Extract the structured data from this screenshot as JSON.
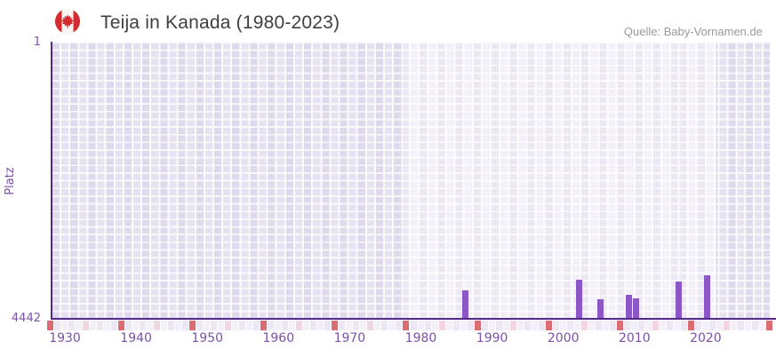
{
  "header": {
    "title": "Teija in Kanada (1980-2023)",
    "source": "Quelle: Baby-Vornamen.de",
    "flag_icon": "canada-flag-icon"
  },
  "chart_data": {
    "type": "bar",
    "title": "Teija in Kanada (1980-2023)",
    "xlabel": "",
    "ylabel": "Platz",
    "y_axis": {
      "top_label": "1",
      "bottom_label": "4442",
      "min": 1,
      "max": 4442,
      "inverted": true
    },
    "x_axis": {
      "start": 1928,
      "end": 2029,
      "tick_years": [
        1930,
        1940,
        1950,
        1960,
        1970,
        1980,
        1990,
        2000,
        2010,
        2020
      ]
    },
    "series": [
      {
        "name": "Platz",
        "points": [
          {
            "year": 1986,
            "rank": 4005
          },
          {
            "year": 2002,
            "rank": 3830
          },
          {
            "year": 2005,
            "rank": 4140
          },
          {
            "year": 2009,
            "rank": 4065
          },
          {
            "year": 2010,
            "rank": 4125
          },
          {
            "year": 2016,
            "rank": 3855
          },
          {
            "year": 2020,
            "rank": 3750
          }
        ]
      }
    ],
    "plot_bands": [
      {
        "from": 1928,
        "to": 1977.5,
        "shade": "dark"
      },
      {
        "from": 1977.5,
        "to": 2021.5,
        "shade": "light"
      },
      {
        "from": 2021.5,
        "to": 2029,
        "shade": "dark"
      }
    ],
    "timeline_markers": {
      "red_years": [
        1928,
        1938,
        1948,
        1958,
        1968,
        1978,
        1988,
        1998,
        2008,
        2018,
        2029
      ],
      "pink_years": [
        1933,
        1943,
        1953,
        1963,
        1973,
        1983,
        1993,
        2003,
        2013,
        2023
      ]
    },
    "legend": "off",
    "grid": "on"
  },
  "colors": {
    "bar": "#8c57c6",
    "axis": "#532a87",
    "tick_label": "#7b51a8",
    "title": "#3f3f3f",
    "source": "#9a9a9a",
    "band_dark_a": "#dfd9ec",
    "band_dark_b": "#e7e2f1",
    "band_light_a": "#ebe7f3",
    "band_light_b": "#f3f0f9",
    "strip_a": "#ece7f3",
    "strip_b": "#f4f0f9",
    "marker_red": "#dd6b74",
    "marker_pink": "#f4d6e2",
    "flag_red": "#d52b2e",
    "flag_white": "#f7f5f2"
  }
}
